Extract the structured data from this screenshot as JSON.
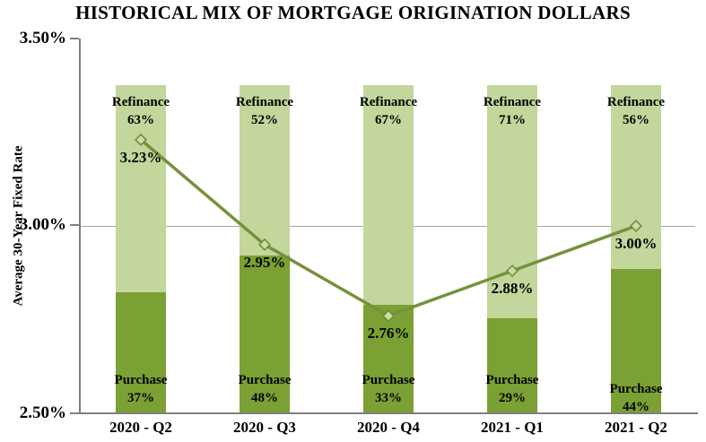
{
  "title": "HISTORICAL MIX OF MORTGAGE ORIGINATION DOLLARS",
  "y_axis": {
    "label": "Average 30-Year Fixed Rate",
    "ticks": [
      "3.50%",
      "3.00%",
      "2.50%"
    ]
  },
  "chart_data": {
    "type": "bar",
    "subtype": "100%-stacked-bars-with-line-overlay",
    "categories": [
      "2020 - Q2",
      "2020 - Q3",
      "2020 - Q4",
      "2021 - Q1",
      "2021 - Q2"
    ],
    "series": [
      {
        "name": "Refinance",
        "role": "bar-top-segment",
        "values": [
          63,
          52,
          67,
          71,
          56
        ],
        "labels": [
          "63%",
          "52%",
          "67%",
          "71%",
          "56%"
        ],
        "color": "#c3d69b"
      },
      {
        "name": "Purchase",
        "role": "bar-bottom-segment",
        "values": [
          37,
          48,
          33,
          29,
          44
        ],
        "labels": [
          "37%",
          "48%",
          "33%",
          "29%",
          "44%"
        ],
        "color": "#7ba033"
      },
      {
        "name": "Average 30-Year Fixed Rate",
        "role": "line",
        "values": [
          3.23,
          2.95,
          2.76,
          2.88,
          3.0
        ],
        "labels": [
          "3.23%",
          "2.95%",
          "2.76%",
          "2.88%",
          "3.00%"
        ],
        "color": "#74923b"
      }
    ],
    "ylabel": "Average 30-Year Fixed Rate",
    "ylim": [
      2.5,
      3.5
    ],
    "y_tick_step": 0.5,
    "gridlines_at": [
      3.0
    ],
    "legend_position": "none",
    "marker_shape": "diamond",
    "marker_fill": "#c9dca3",
    "marker_stroke": "#6f8a39",
    "axis_color": "#7f7f7f",
    "grid_color": "#a6a6a6"
  }
}
